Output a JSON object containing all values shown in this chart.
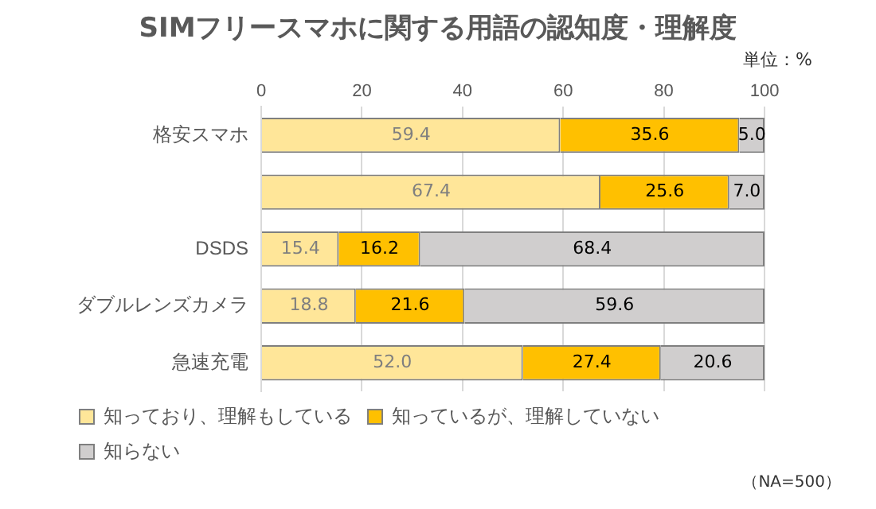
{
  "chart_data": {
    "type": "bar",
    "orientation": "horizontal",
    "stacked": true,
    "title": "SIMフリースマホに関する用語の認知度・理解度",
    "subtitle": "単位：%",
    "categories": [
      "格安スマホ",
      null,
      "DSDS",
      "ダブルレンズカメラ",
      "急速充電"
    ],
    "series": [
      {
        "name": "知っており、理解もしている",
        "color": "#ffe699",
        "values": [
          59.4,
          67.4,
          15.4,
          18.8,
          52.0
        ],
        "value_labels": [
          "59.4",
          "67.4",
          "15.4",
          "18.8",
          "52.0"
        ]
      },
      {
        "name": "知っているが、理解していない",
        "color": "#ffc000",
        "values": [
          35.6,
          25.6,
          16.2,
          21.6,
          27.4
        ],
        "value_labels": [
          "35.6",
          "25.6",
          "16.2",
          "21.6",
          "27.4"
        ]
      },
      {
        "name": "知らない",
        "color": "#d0cece",
        "values": [
          5.0,
          7.0,
          68.4,
          59.6,
          20.6
        ],
        "value_labels": [
          "5.0",
          "7.0",
          "68.4",
          "59.6",
          "20.6"
        ]
      }
    ],
    "xlim": [
      0,
      100
    ],
    "xticks": [
      0,
      20,
      40,
      60,
      80,
      100
    ],
    "grid": "x",
    "legend": "bottom left",
    "annotations": [
      "（NA=500）"
    ]
  }
}
